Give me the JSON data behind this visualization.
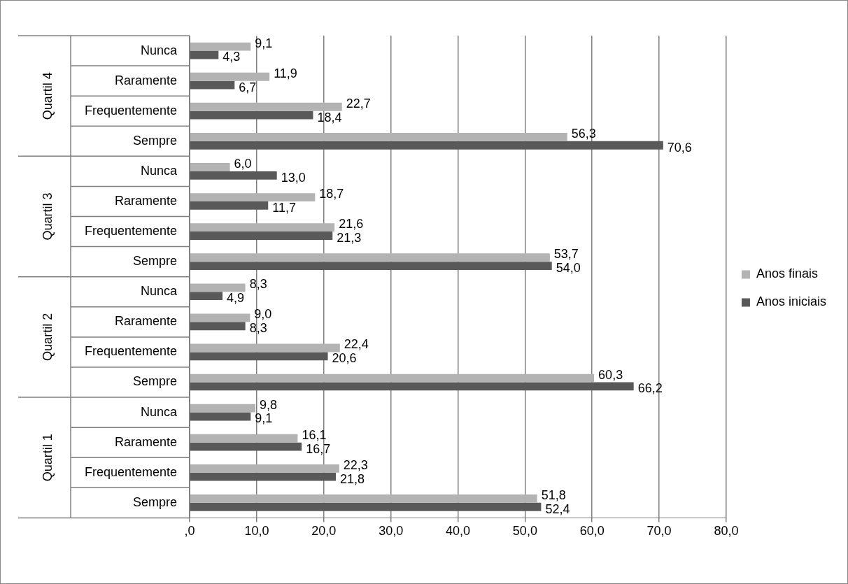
{
  "chart_data": {
    "type": "bar",
    "orientation": "horizontal",
    "categories": [
      "Nunca",
      "Raramente",
      "Frequentemente",
      "Sempre",
      "Nunca",
      "Raramente",
      "Frequentemente",
      "Sempre",
      "Nunca",
      "Raramente",
      "Frequentemente",
      "Sempre",
      "Nunca",
      "Raramente",
      "Frequentemente",
      "Sempre"
    ],
    "annotations": [
      "Quartil 4",
      "Quartil 3",
      "Quartil 2",
      "Quartil 1"
    ],
    "series": [
      {
        "name": "Anos finais",
        "color": "#b3b3b3",
        "values": [
          9.1,
          11.9,
          22.7,
          56.3,
          6.0,
          18.7,
          21.6,
          53.7,
          8.3,
          9.0,
          22.4,
          60.3,
          9.8,
          16.1,
          22.3,
          51.8
        ],
        "value_labels": [
          "9,1",
          "11,9",
          "22,7",
          "56,3",
          "6,0",
          "18,7",
          "21,6",
          "53,7",
          "8,3",
          "9,0",
          "22,4",
          "60,3",
          "9,8",
          "16,1",
          "22,3",
          "51,8"
        ]
      },
      {
        "name": "Anos iniciais",
        "color": "#595959",
        "values": [
          4.3,
          6.7,
          18.4,
          70.6,
          13.0,
          11.7,
          21.3,
          54.0,
          4.9,
          8.3,
          20.6,
          66.2,
          9.1,
          16.7,
          21.8,
          52.4
        ],
        "value_labels": [
          "4,3",
          "6,7",
          "18,4",
          "70,6",
          "13,0",
          "11,7",
          "21,3",
          "54,0",
          "4,9",
          "8,3",
          "20,6",
          "66,2",
          "9,1",
          "16,7",
          "21,8",
          "52,4"
        ]
      }
    ],
    "xlim": [
      0,
      80
    ],
    "xticks": [
      {
        "value": 0,
        "label": ",0"
      },
      {
        "value": 10,
        "label": "10,0"
      },
      {
        "value": 20,
        "label": "20,0"
      },
      {
        "value": 30,
        "label": "30,0"
      },
      {
        "value": 40,
        "label": "40,0"
      },
      {
        "value": 50,
        "label": "50,0"
      },
      {
        "value": 60,
        "label": "60,0"
      },
      {
        "value": 70,
        "label": "70,0"
      },
      {
        "value": 80,
        "label": "80,0"
      }
    ],
    "grid": "x",
    "legend": "right"
  }
}
